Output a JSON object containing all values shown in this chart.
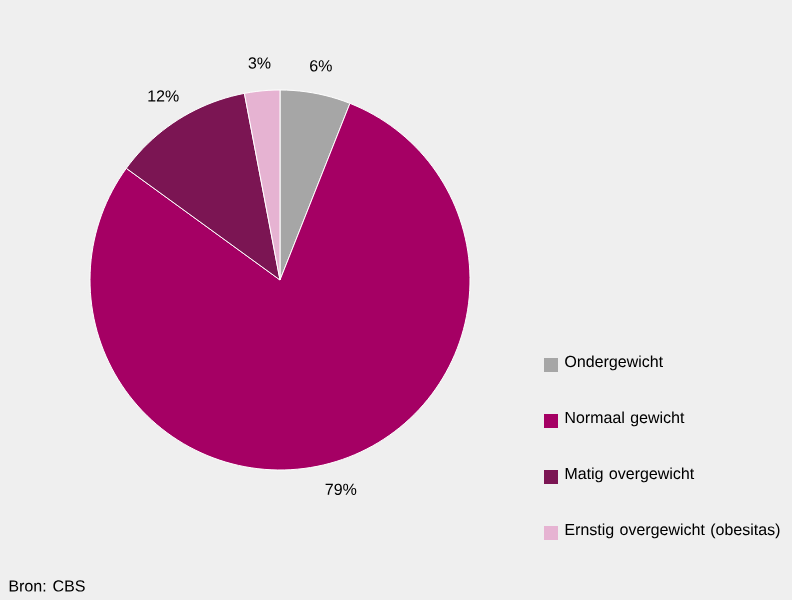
{
  "chart_data": {
    "type": "pie",
    "categories": [
      "Ondergewicht",
      "Normaal gewicht",
      "Matig overgewicht",
      "Ernstig overgewicht (obesitas)"
    ],
    "values": [
      6,
      79,
      12,
      3
    ],
    "value_labels": [
      "6%",
      "79%",
      "12%",
      "3%"
    ],
    "colors": [
      "#a6a6a6",
      "#a50064",
      "#7b1553",
      "#e6b3d2"
    ],
    "legend": "right",
    "annotations": [
      "Bron: CBS"
    ]
  }
}
